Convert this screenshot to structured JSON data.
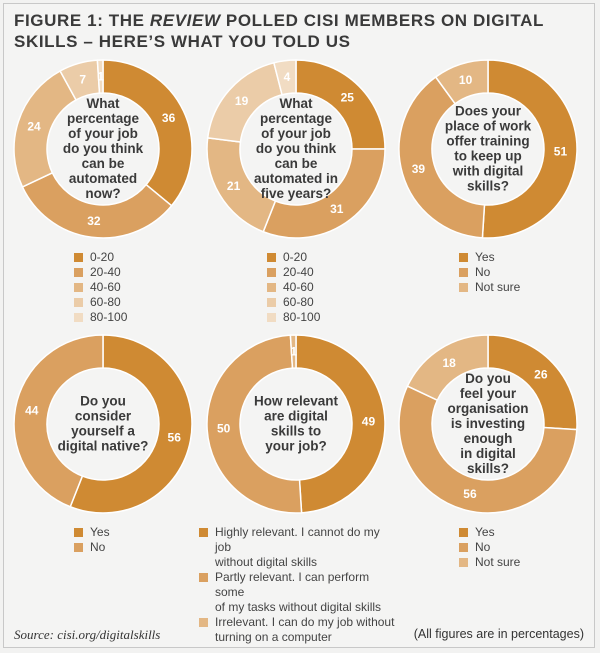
{
  "title": {
    "prefix": "FIGURE 1: THE ",
    "emph": "REVIEW",
    "suffix": " POLLED CISI MEMBERS ON DIGITAL SKILLS – HERE’S WHAT YOU TOLD US"
  },
  "source": "Source: cisi.org/digitalskills",
  "note": "(All figures are in percentages)",
  "chart_data": [
    {
      "type": "pie",
      "question": [
        "What",
        "percentage",
        "of your job",
        "do you think",
        "can be",
        "automated",
        "now?"
      ],
      "categories": [
        "0-20",
        "20-40",
        "40-60",
        "60-80",
        "80-100"
      ],
      "values": [
        36,
        32,
        24,
        7,
        1
      ],
      "colors": [
        "#cf8a33",
        "#daa060",
        "#e3b784",
        "#ebcca8",
        "#f1dcc3"
      ],
      "labels": [
        "36",
        "32",
        "24",
        "7",
        "1"
      ]
    },
    {
      "type": "pie",
      "question": [
        "What",
        "percentage",
        "of your job",
        "do you think",
        "can be",
        "automated in",
        "five years?"
      ],
      "categories": [
        "0-20",
        "20-40",
        "40-60",
        "60-80",
        "80-100"
      ],
      "values": [
        25,
        31,
        21,
        19,
        4
      ],
      "colors": [
        "#cf8a33",
        "#daa060",
        "#e3b784",
        "#ebcca8",
        "#f1dcc3"
      ],
      "labels": [
        "25",
        "31",
        "21",
        "19",
        "4"
      ]
    },
    {
      "type": "pie",
      "question": [
        "Does your",
        "place of work",
        "offer training",
        "to keep up",
        "with digital",
        "skills?"
      ],
      "categories": [
        "Yes",
        "No",
        "Not sure"
      ],
      "values": [
        51,
        39,
        10
      ],
      "colors": [
        "#cf8a33",
        "#daa060",
        "#e3b784"
      ],
      "labels": [
        "51",
        "39",
        "10"
      ]
    },
    {
      "type": "pie",
      "question": [
        "Do you",
        "consider",
        "yourself a",
        "digital native?"
      ],
      "categories": [
        "Yes",
        "No"
      ],
      "values": [
        56,
        44
      ],
      "colors": [
        "#cf8a33",
        "#daa060"
      ],
      "labels": [
        "56",
        "44"
      ]
    },
    {
      "type": "pie",
      "question": [
        "How relevant",
        "are digital",
        "skills to",
        "your job?"
      ],
      "categories": [
        "Highly relevant. I cannot do my job without digital skills",
        "Partly relevant. I can perform some of my tasks without digital skills",
        "Irrelevant. I can do my job without turning on a computer"
      ],
      "legend_lines": [
        [
          "Highly relevant. I cannot do my job",
          "without digital skills"
        ],
        [
          "Partly relevant. I can perform some",
          "of my tasks without digital skills"
        ],
        [
          "Irrelevant. I can do my job without",
          "turning on a computer"
        ]
      ],
      "values": [
        49,
        50,
        1
      ],
      "colors": [
        "#cf8a33",
        "#daa060",
        "#e3b784"
      ],
      "labels": [
        "49",
        "50",
        "1"
      ]
    },
    {
      "type": "pie",
      "question": [
        "Do you",
        "feel your",
        "organisation",
        "is investing",
        "enough",
        "in digital",
        "skills?"
      ],
      "categories": [
        "Yes",
        "No",
        "Not sure"
      ],
      "values": [
        26,
        56,
        18
      ],
      "colors": [
        "#cf8a33",
        "#daa060",
        "#e3b784"
      ],
      "labels": [
        "26",
        "56",
        "18"
      ]
    }
  ]
}
